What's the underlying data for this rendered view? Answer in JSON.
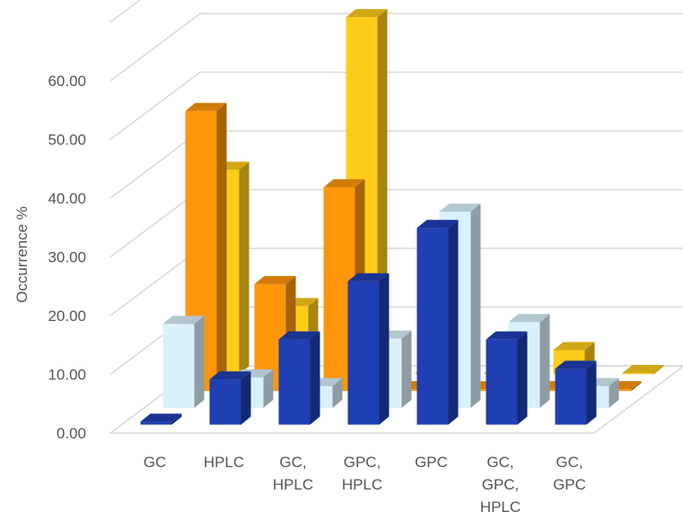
{
  "chart_data": {
    "type": "bar",
    "style": "3d-clustered-column",
    "categories": [
      "GC",
      "HPLC",
      "GC, HPLC",
      "GPC, HPLC",
      "GPC",
      "GC, GPC, HPLC",
      "GC, GPC"
    ],
    "ylabel": "Occurrence %",
    "ylim": [
      0,
      70
    ],
    "yticks": [
      "0.00",
      "10.00",
      "20.00",
      "30.00",
      "40.00",
      "50.00",
      "60.00"
    ],
    "grid": true,
    "legend": "none",
    "series": [
      {
        "color": "#1f3fb4",
        "values": [
          0.5,
          7.7,
          14.5,
          24.4,
          33.5,
          14.5,
          9.5
        ]
      },
      {
        "color": "#d9f1fb",
        "values": [
          14.3,
          5.2,
          3.7,
          11.8,
          33.4,
          14.6,
          3.7
        ]
      },
      {
        "color": "#ff960a",
        "values": [
          47.7,
          18.2,
          34.7,
          0.3,
          0.3,
          0.3,
          0.3
        ]
      },
      {
        "color": "#ffcc1a",
        "values": [
          34.8,
          11.6,
          60.8,
          0.2,
          0.2,
          4.1,
          0.2
        ]
      }
    ]
  }
}
